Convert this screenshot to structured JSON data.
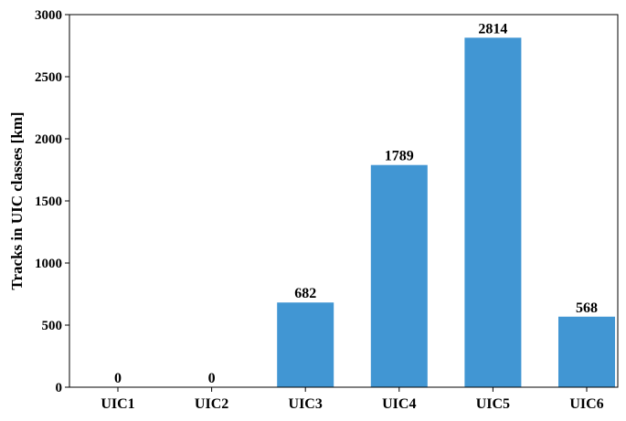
{
  "chart_data": {
    "type": "bar",
    "y_label": "Tracks in UIC classes [km]",
    "categories": [
      "UIC1",
      "UIC2",
      "UIC3",
      "UIC4",
      "UIC5",
      "UIC6"
    ],
    "values": [
      0,
      0,
      682,
      1789,
      2814,
      568
    ],
    "color": "#4196d3",
    "ylim": [
      0,
      3000
    ],
    "yticks": [
      0,
      500,
      1000,
      1500,
      2000,
      2500,
      3000
    ]
  }
}
